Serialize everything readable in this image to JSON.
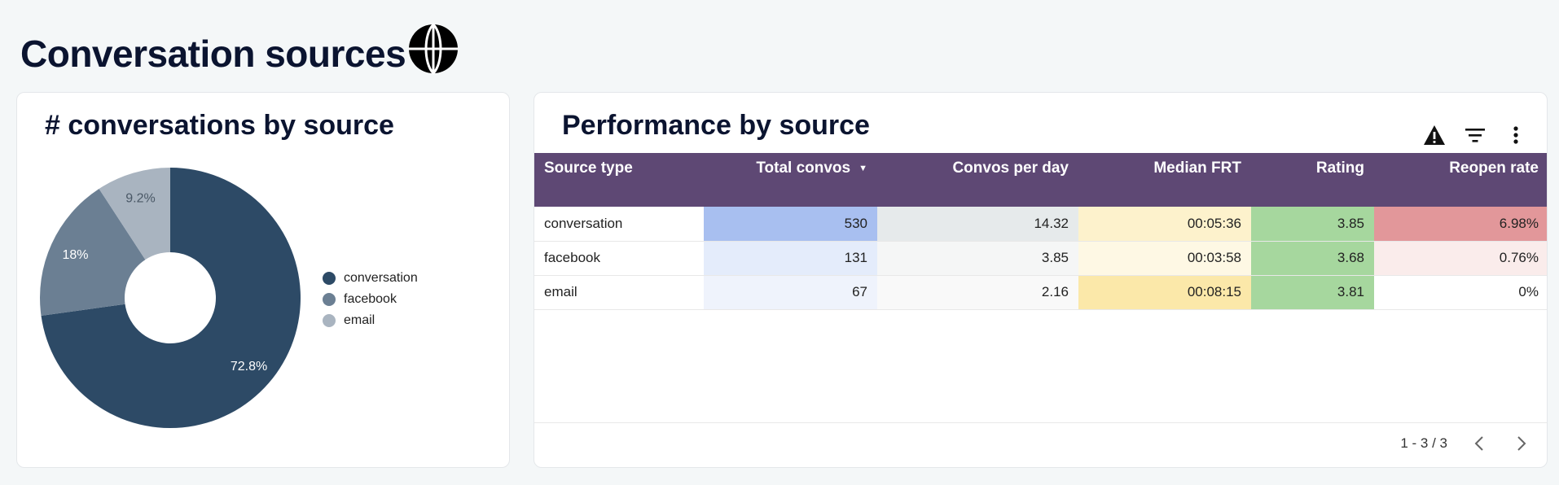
{
  "page": {
    "title": "Conversation sources",
    "title_icon": "globe-icon"
  },
  "donut_card": {
    "title": "# conversations by source",
    "chart_data": {
      "type": "pie",
      "style": "donut",
      "title": "# conversations by source",
      "categories": [
        "conversation",
        "facebook",
        "email"
      ],
      "values": [
        72.8,
        18,
        9.2
      ],
      "labels": [
        "72.8%",
        "18%",
        "9.2%"
      ],
      "colors": [
        "#2d4a66",
        "#6b7f93",
        "#a9b4c0"
      ],
      "legend_position": "right"
    }
  },
  "table_card": {
    "title": "Performance by source",
    "icons": [
      "warning-icon",
      "filter-icon",
      "more-vert-icon"
    ],
    "columns": [
      "Source type",
      "Total convos",
      "Convos per day",
      "Median FRT",
      "Rating",
      "Reopen rate"
    ],
    "sorted_column": "Total convos",
    "rows": [
      {
        "cells": [
          "conversation",
          "530",
          "14.32",
          "00:05:36",
          "3.85",
          "6.98%"
        ],
        "colors": [
          "#ffffff",
          "#a8bff0",
          "#e6eaeb",
          "#fdf2cc",
          "#a6d79e",
          "#e2979a"
        ]
      },
      {
        "cells": [
          "facebook",
          "131",
          "3.85",
          "00:03:58",
          "3.68",
          "0.76%"
        ],
        "colors": [
          "#ffffff",
          "#e4ecfb",
          "#f5f6f6",
          "#fef8e4",
          "#a6d79e",
          "#faeceb"
        ]
      },
      {
        "cells": [
          "email",
          "67",
          "2.16",
          "00:08:15",
          "3.81",
          "0%"
        ],
        "colors": [
          "#ffffff",
          "#eff3fc",
          "#f9f9f9",
          "#fbe8a9",
          "#a6d79e",
          "#ffffff"
        ]
      }
    ],
    "header_color": "#5e4874",
    "pager": {
      "range": "1 - 3 / 3",
      "prev_icon": "chevron-left-icon",
      "next_icon": "chevron-right-icon"
    }
  }
}
